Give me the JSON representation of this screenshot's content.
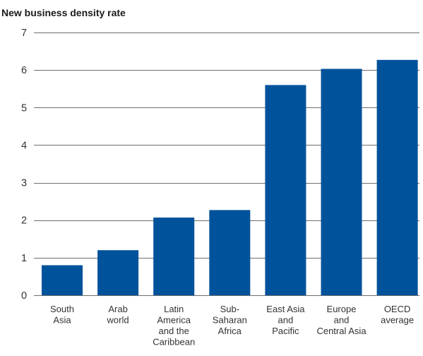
{
  "chart_data": {
    "type": "bar",
    "title": "New business density rate",
    "xlabel": "",
    "ylabel": "",
    "ylim": [
      0,
      7
    ],
    "yticks": [
      0,
      1,
      2,
      3,
      4,
      5,
      6,
      7
    ],
    "grid": true,
    "categories": [
      [
        "South",
        "Asia"
      ],
      [
        "Arab",
        "world"
      ],
      [
        "Latin",
        "America",
        "and the",
        "Caribbean"
      ],
      [
        "Sub-",
        "Saharan",
        "Africa"
      ],
      [
        "East Asia",
        "and",
        "Pacific"
      ],
      [
        "Europe",
        "and",
        "Central Asia"
      ],
      [
        "OECD",
        "average"
      ]
    ],
    "values": [
      0.8,
      1.2,
      2.07,
      2.27,
      5.6,
      6.03,
      6.27
    ],
    "bar_color": "#00529b"
  }
}
